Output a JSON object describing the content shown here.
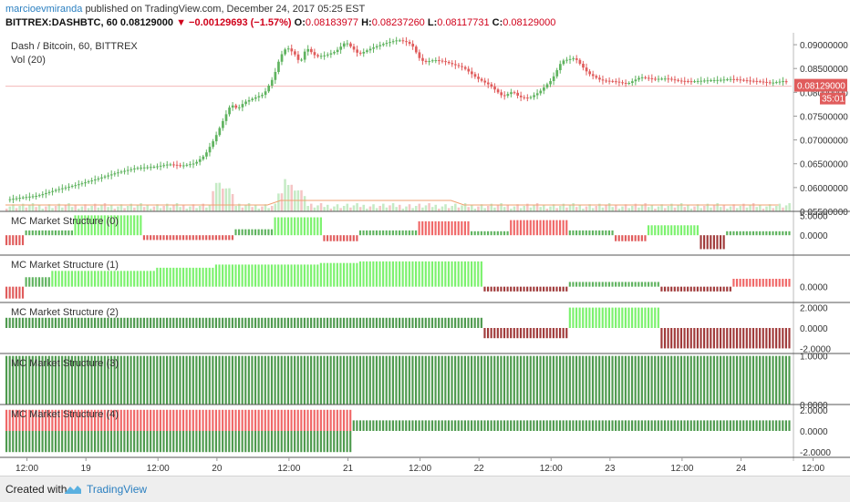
{
  "header": {
    "author": "marcioevmiranda",
    "published_text": "published on TradingView.com, December 24, 2017 05:25 EST",
    "symbol": "BITTREX:DASHBTC, 60",
    "last": "0.08129000",
    "change": "−0.00129693 (−1.57%)",
    "o_label": "O:",
    "o_value": "0.08183977",
    "h_label": "H:",
    "h_value": "0.08237260",
    "l_label": "L:",
    "l_value": "0.08117731",
    "c_label": "C:",
    "c_value": "0.08129000"
  },
  "footer": {
    "created_with": "Created with",
    "brand": "TradingView"
  },
  "colors": {
    "up": "#5fb35f",
    "down": "#e05c5c",
    "bright_green": "#7cf26e",
    "dark_green": "#4e9a4e",
    "dark_red": "#a03a3a",
    "pink": "#f06868"
  },
  "chart_data": {
    "type": "candlestick",
    "title": "Dash / Bitcoin, 60, BITTREX",
    "volume_label": "Vol (20)",
    "price_axis": {
      "ticks": [
        "0.09000000",
        "0.08500000",
        "0.08000000",
        "0.07500000",
        "0.07000000",
        "0.06500000",
        "0.06000000",
        "0.05500000"
      ],
      "range": [
        0.055,
        0.0925
      ]
    },
    "last_price_label": "0.08129000",
    "countdown_label": "35:01",
    "price_series": {
      "x": [
        0,
        5,
        10,
        16,
        22,
        28,
        34,
        40,
        46,
        50,
        54,
        58,
        61,
        64,
        67,
        69,
        71,
        73,
        76,
        79,
        82,
        84,
        86,
        88,
        89,
        90,
        92,
        95,
        98,
        101,
        104,
        108,
        112,
        116,
        120,
        123,
        125,
        126,
        128,
        131,
        134,
        137,
        140,
        144,
        148,
        152,
        155,
        157,
        160,
        163,
        167,
        170,
        174,
        178,
        182,
        186,
        190,
        194,
        198,
        202,
        206,
        210,
        214,
        218,
        222,
        226,
        230,
        234,
        238,
        240
      ],
      "y": [
        0.0574,
        0.0579,
        0.0583,
        0.0596,
        0.0606,
        0.0618,
        0.0631,
        0.0641,
        0.0644,
        0.0649,
        0.0646,
        0.0651,
        0.0668,
        0.0703,
        0.0747,
        0.0775,
        0.0765,
        0.0779,
        0.0788,
        0.0796,
        0.0832,
        0.0875,
        0.0895,
        0.0883,
        0.0876,
        0.086,
        0.0894,
        0.0875,
        0.0878,
        0.0886,
        0.0906,
        0.088,
        0.0893,
        0.0903,
        0.091,
        0.0905,
        0.0893,
        0.0875,
        0.0863,
        0.0868,
        0.0865,
        0.0858,
        0.0852,
        0.083,
        0.0815,
        0.0791,
        0.0802,
        0.079,
        0.0788,
        0.08,
        0.0827,
        0.0866,
        0.0872,
        0.084,
        0.0825,
        0.0823,
        0.0818,
        0.0832,
        0.0828,
        0.0829,
        0.0824,
        0.0823,
        0.0825,
        0.0826,
        0.0828,
        0.0825,
        0.0823,
        0.082,
        0.0824,
        0.0813
      ]
    },
    "time_axis": {
      "ticks": [
        "12:00",
        "19",
        "12:00",
        "20",
        "12:00",
        "21",
        "12:00",
        "22",
        "12:00",
        "23",
        "12:00",
        "24",
        "12:00"
      ],
      "positions": [
        6,
        24,
        46,
        64,
        86,
        104,
        126,
        144,
        166,
        184,
        206,
        224,
        246
      ]
    },
    "indicators": [
      {
        "label": "MC Market Structure (0)",
        "ticks": [
          "5.0000",
          "0.0000"
        ],
        "segments": [
          {
            "from": 0,
            "to": 6,
            "v": -2.5,
            "c": "down"
          },
          {
            "from": 6,
            "to": 21,
            "v": 1.2,
            "c": "up"
          },
          {
            "from": 21,
            "to": 42,
            "v": 5.0,
            "c": "bright_green"
          },
          {
            "from": 42,
            "to": 70,
            "v": -1.2,
            "c": "down"
          },
          {
            "from": 70,
            "to": 82,
            "v": 1.5,
            "c": "up"
          },
          {
            "from": 82,
            "to": 97,
            "v": 4.5,
            "c": "bright_green"
          },
          {
            "from": 97,
            "to": 108,
            "v": -1.5,
            "c": "down"
          },
          {
            "from": 108,
            "to": 126,
            "v": 1.2,
            "c": "up"
          },
          {
            "from": 126,
            "to": 142,
            "v": 3.5,
            "c": "pink"
          },
          {
            "from": 142,
            "to": 154,
            "v": 1.0,
            "c": "up"
          },
          {
            "from": 154,
            "to": 172,
            "v": 3.8,
            "c": "pink"
          },
          {
            "from": 172,
            "to": 186,
            "v": 1.2,
            "c": "up"
          },
          {
            "from": 186,
            "to": 196,
            "v": -1.5,
            "c": "down"
          },
          {
            "from": 196,
            "to": 212,
            "v": 2.5,
            "c": "bright_green"
          },
          {
            "from": 212,
            "to": 220,
            "v": -3.5,
            "c": "dark_red"
          },
          {
            "from": 220,
            "to": 240,
            "v": 1.0,
            "c": "up"
          }
        ]
      },
      {
        "label": "MC Market Structure (1)",
        "ticks": [
          "0.0000"
        ],
        "segments": [
          {
            "from": 0,
            "to": 6,
            "v": -1.5,
            "c": "down"
          },
          {
            "from": 6,
            "to": 14,
            "v": 1.2,
            "c": "up"
          },
          {
            "from": 14,
            "to": 46,
            "v": 2.0,
            "c": "bright_green"
          },
          {
            "from": 46,
            "to": 64,
            "v": 2.4,
            "c": "bright_green"
          },
          {
            "from": 64,
            "to": 96,
            "v": 2.8,
            "c": "bright_green"
          },
          {
            "from": 96,
            "to": 108,
            "v": 3.0,
            "c": "bright_green"
          },
          {
            "from": 108,
            "to": 146,
            "v": 3.2,
            "c": "bright_green"
          },
          {
            "from": 146,
            "to": 172,
            "v": -0.6,
            "c": "dark_red"
          },
          {
            "from": 172,
            "to": 200,
            "v": 0.6,
            "c": "up"
          },
          {
            "from": 200,
            "to": 222,
            "v": -0.6,
            "c": "dark_red"
          },
          {
            "from": 222,
            "to": 240,
            "v": 1.0,
            "c": "pink"
          }
        ]
      },
      {
        "label": "MC Market Structure (2)",
        "ticks": [
          "2.0000",
          "0.0000",
          "-2.0000"
        ],
        "segments": [
          {
            "from": 0,
            "to": 146,
            "v": 1.0,
            "c": "dark_green"
          },
          {
            "from": 146,
            "to": 172,
            "v": -1.0,
            "c": "dark_red"
          },
          {
            "from": 172,
            "to": 200,
            "v": 2.0,
            "c": "bright_green"
          },
          {
            "from": 200,
            "to": 240,
            "v": -2.0,
            "c": "dark_red"
          }
        ]
      },
      {
        "label": "MC Market Structure (3)",
        "ticks": [
          "1.0000",
          "0.0000"
        ],
        "segments": [
          {
            "from": 0,
            "to": 240,
            "v": 1.0,
            "c": "dark_green"
          }
        ]
      },
      {
        "label": "MC Market Structure (4)",
        "ticks": [
          "2.0000",
          "0.0000",
          "-2.0000"
        ],
        "segments": [
          {
            "from": 0,
            "to": 106,
            "v": 2.0,
            "c": "pink"
          },
          {
            "from": 0,
            "to": 106,
            "v": -2.0,
            "c": "dark_green"
          },
          {
            "from": 106,
            "to": 240,
            "v": 1.0,
            "c": "dark_green"
          }
        ]
      }
    ]
  }
}
